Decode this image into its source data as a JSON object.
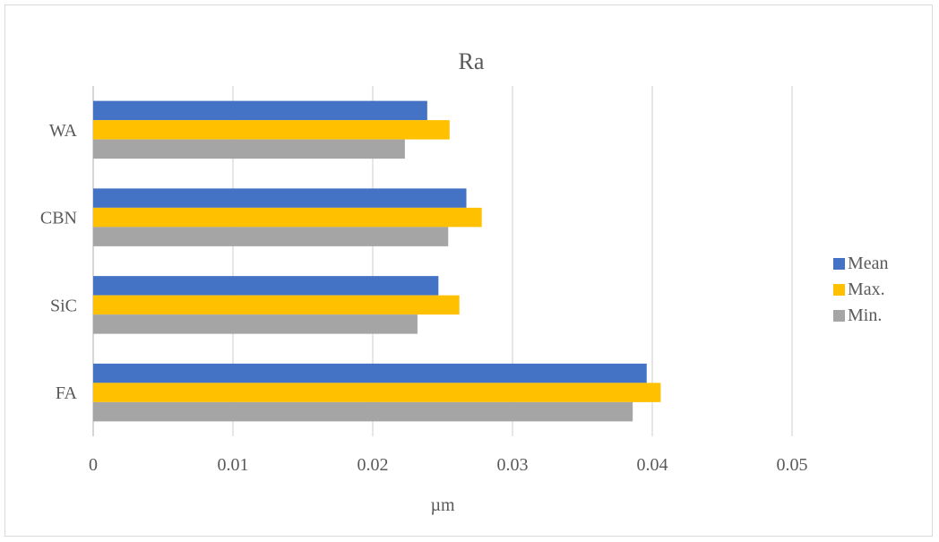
{
  "chart_data": {
    "type": "bar",
    "orientation": "horizontal",
    "title": "Ra",
    "xlabel": "µm",
    "ylabel": "",
    "categories": [
      "FA",
      "SiC",
      "CBN",
      "WA"
    ],
    "series": [
      {
        "name": "Mean",
        "color": "#4472c4",
        "values": [
          0.0396,
          0.0247,
          0.0267,
          0.0239
        ]
      },
      {
        "name": "Max.",
        "color": "#ffc000",
        "values": [
          0.0406,
          0.0262,
          0.0278,
          0.0255
        ]
      },
      {
        "name": "Min.",
        "color": "#a5a5a5",
        "values": [
          0.0386,
          0.0232,
          0.0254,
          0.0223
        ]
      }
    ],
    "xlim": [
      0,
      0.05
    ],
    "xticks": [
      "0",
      "0.01",
      "0.02",
      "0.03",
      "0.04",
      "0.05"
    ],
    "grid": true,
    "legend_position": "right"
  }
}
